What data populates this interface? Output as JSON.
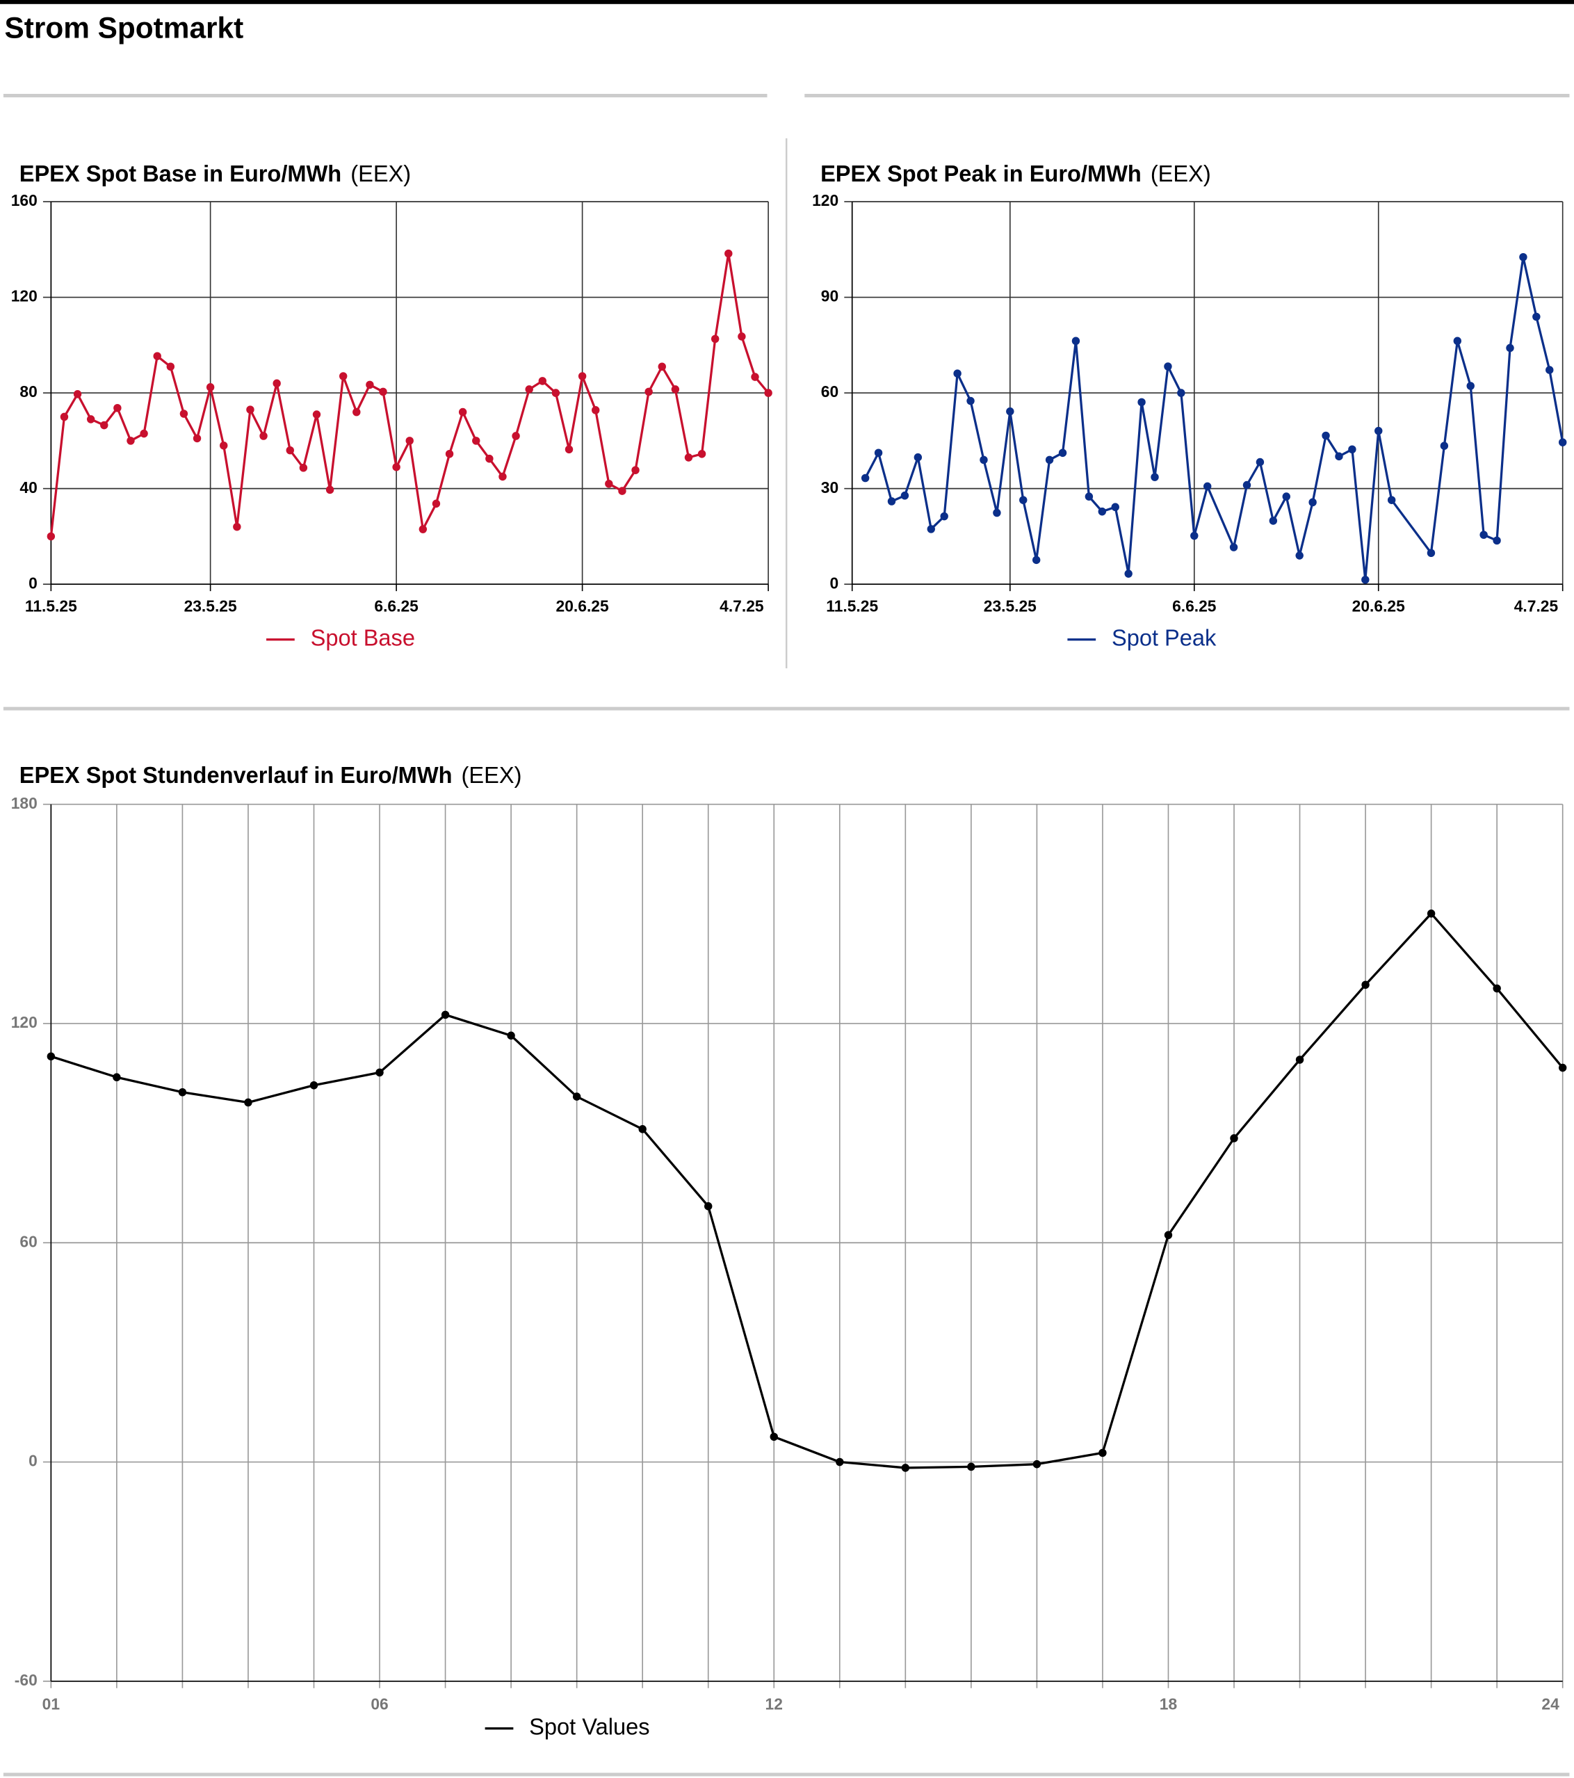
{
  "header": {
    "title": "Strom Spotmarkt"
  },
  "chart_data": [
    {
      "type": "line",
      "title": "EPEX Spot Base in Euro/MWh",
      "source": "(EEX)",
      "x": [
        "11.5.25",
        "12.5.25",
        "13.5.25",
        "14.5.25",
        "15.5.25",
        "16.5.25",
        "17.5.25",
        "18.5.25",
        "19.5.25",
        "20.5.25",
        "21.5.25",
        "22.5.25",
        "23.5.25",
        "24.5.25",
        "25.5.25",
        "26.5.25",
        "27.5.25",
        "28.5.25",
        "29.5.25",
        "30.5.25",
        "31.5.25",
        "1.6.25",
        "2.6.25",
        "3.6.25",
        "4.6.25",
        "5.6.25",
        "6.6.25",
        "7.6.25",
        "8.6.25",
        "9.6.25",
        "10.6.25",
        "11.6.25",
        "12.6.25",
        "13.6.25",
        "14.6.25",
        "15.6.25",
        "16.6.25",
        "17.6.25",
        "18.6.25",
        "19.6.25",
        "20.6.25",
        "21.6.25",
        "22.6.25",
        "23.6.25",
        "24.6.25",
        "25.6.25",
        "26.6.25",
        "27.6.25",
        "28.6.25",
        "29.6.25",
        "30.6.25",
        "1.7.25",
        "2.7.25",
        "3.7.25",
        "4.7.25"
      ],
      "series": [
        {
          "name": "Spot Base",
          "color": "#c8102e",
          "values": [
            20,
            70,
            79.5,
            69,
            66.5,
            73.7,
            60,
            63,
            95.4,
            91,
            71.3,
            61,
            82.4,
            58,
            24,
            73,
            62,
            84,
            56,
            48.7,
            71,
            39.5,
            87,
            72,
            83.4,
            80.5,
            49,
            60,
            23,
            33.7,
            54.5,
            72,
            60,
            52.5,
            45,
            62,
            81.5,
            85,
            80,
            56.4,
            87,
            72.8,
            42,
            39,
            47.7,
            80.5,
            91,
            81.5,
            53,
            54.5,
            102.6,
            138.3,
            103.6,
            86.7,
            80
          ]
        }
      ],
      "xlim": [
        "11.5.25",
        "4.7.25"
      ],
      "xticks": [
        "11.5.25",
        "23.5.25",
        "6.6.25",
        "20.6.25",
        "4.7.25"
      ],
      "ylim": [
        0,
        160
      ],
      "yticks": [
        0,
        40,
        80,
        120,
        160
      ],
      "grid": true
    },
    {
      "type": "line",
      "title": "EPEX Spot Peak in Euro/MWh",
      "source": "(EEX)",
      "x": [
        "12.5.25",
        "13.5.25",
        "14.5.25",
        "15.5.25",
        "16.5.25",
        "17.5.25",
        "18.5.25",
        "19.5.25",
        "20.5.25",
        "21.5.25",
        "22.5.25",
        "23.5.25",
        "24.5.25",
        "25.5.25",
        "26.5.25",
        "27.5.25",
        "28.5.25",
        "29.5.25",
        "30.5.25",
        "31.5.25",
        "1.6.25",
        "2.6.25",
        "3.6.25",
        "4.6.25",
        "5.6.25",
        "6.6.25",
        "7.6.25",
        "9.6.25",
        "10.6.25",
        "11.6.25",
        "12.6.25",
        "13.6.25",
        "14.6.25",
        "15.6.25",
        "16.6.25",
        "17.6.25",
        "18.6.25",
        "19.6.25",
        "20.6.25",
        "21.6.25",
        "24.6.25",
        "25.6.25",
        "26.6.25",
        "27.6.25",
        "28.6.25",
        "29.6.25",
        "30.6.25",
        "1.7.25",
        "2.7.25",
        "3.7.25",
        "4.7.25"
      ],
      "series": [
        {
          "name": "Spot Peak",
          "color": "#0b2f8a",
          "values": [
            33.3,
            41.2,
            26,
            27.8,
            39.8,
            17.3,
            21.3,
            66.1,
            57.5,
            39,
            22.4,
            54.2,
            26.4,
            7.6,
            39,
            41.2,
            76.3,
            27.5,
            22.8,
            24.2,
            3.3,
            57.1,
            33.6,
            68.3,
            60,
            15.2,
            30.7,
            11.6,
            31.1,
            38.3,
            19.9,
            27.5,
            9,
            25.7,
            46.6,
            40.1,
            42.3,
            1.4,
            48.1,
            26.4,
            9.8,
            43.4,
            76.3,
            62.2,
            15.5,
            13.7,
            74.1,
            102.6,
            83.9,
            67.2,
            44.5
          ]
        }
      ],
      "xlim": [
        "11.5.25",
        "4.7.25"
      ],
      "xticks": [
        "11.5.25",
        "23.5.25",
        "6.6.25",
        "20.6.25",
        "4.7.25"
      ],
      "ylim": [
        0,
        120
      ],
      "yticks": [
        0,
        30,
        60,
        90,
        120
      ],
      "grid": true
    },
    {
      "type": "line",
      "title": "EPEX Spot Stundenverlauf in Euro/MWh",
      "source": "(EEX)",
      "categories": [
        "01",
        null,
        null,
        null,
        null,
        "06",
        null,
        null,
        null,
        null,
        null,
        "12",
        null,
        null,
        null,
        null,
        null,
        "18",
        null,
        null,
        null,
        null,
        null,
        "24"
      ],
      "series": [
        {
          "name": "Spot Values",
          "color": "#000000",
          "values": [
            111,
            105.3,
            101.2,
            98.4,
            103.1,
            106.6,
            122.4,
            116.7,
            100,
            91.1,
            70,
            6.9,
            0,
            -1.6,
            -1.3,
            -0.6,
            2.5,
            62.1,
            88.6,
            110.1,
            130.6,
            150.1,
            129.6,
            107.9
          ]
        }
      ],
      "ylim": [
        -60,
        180
      ],
      "yticks": [
        -60,
        0,
        60,
        120,
        180
      ],
      "grid": true
    }
  ]
}
